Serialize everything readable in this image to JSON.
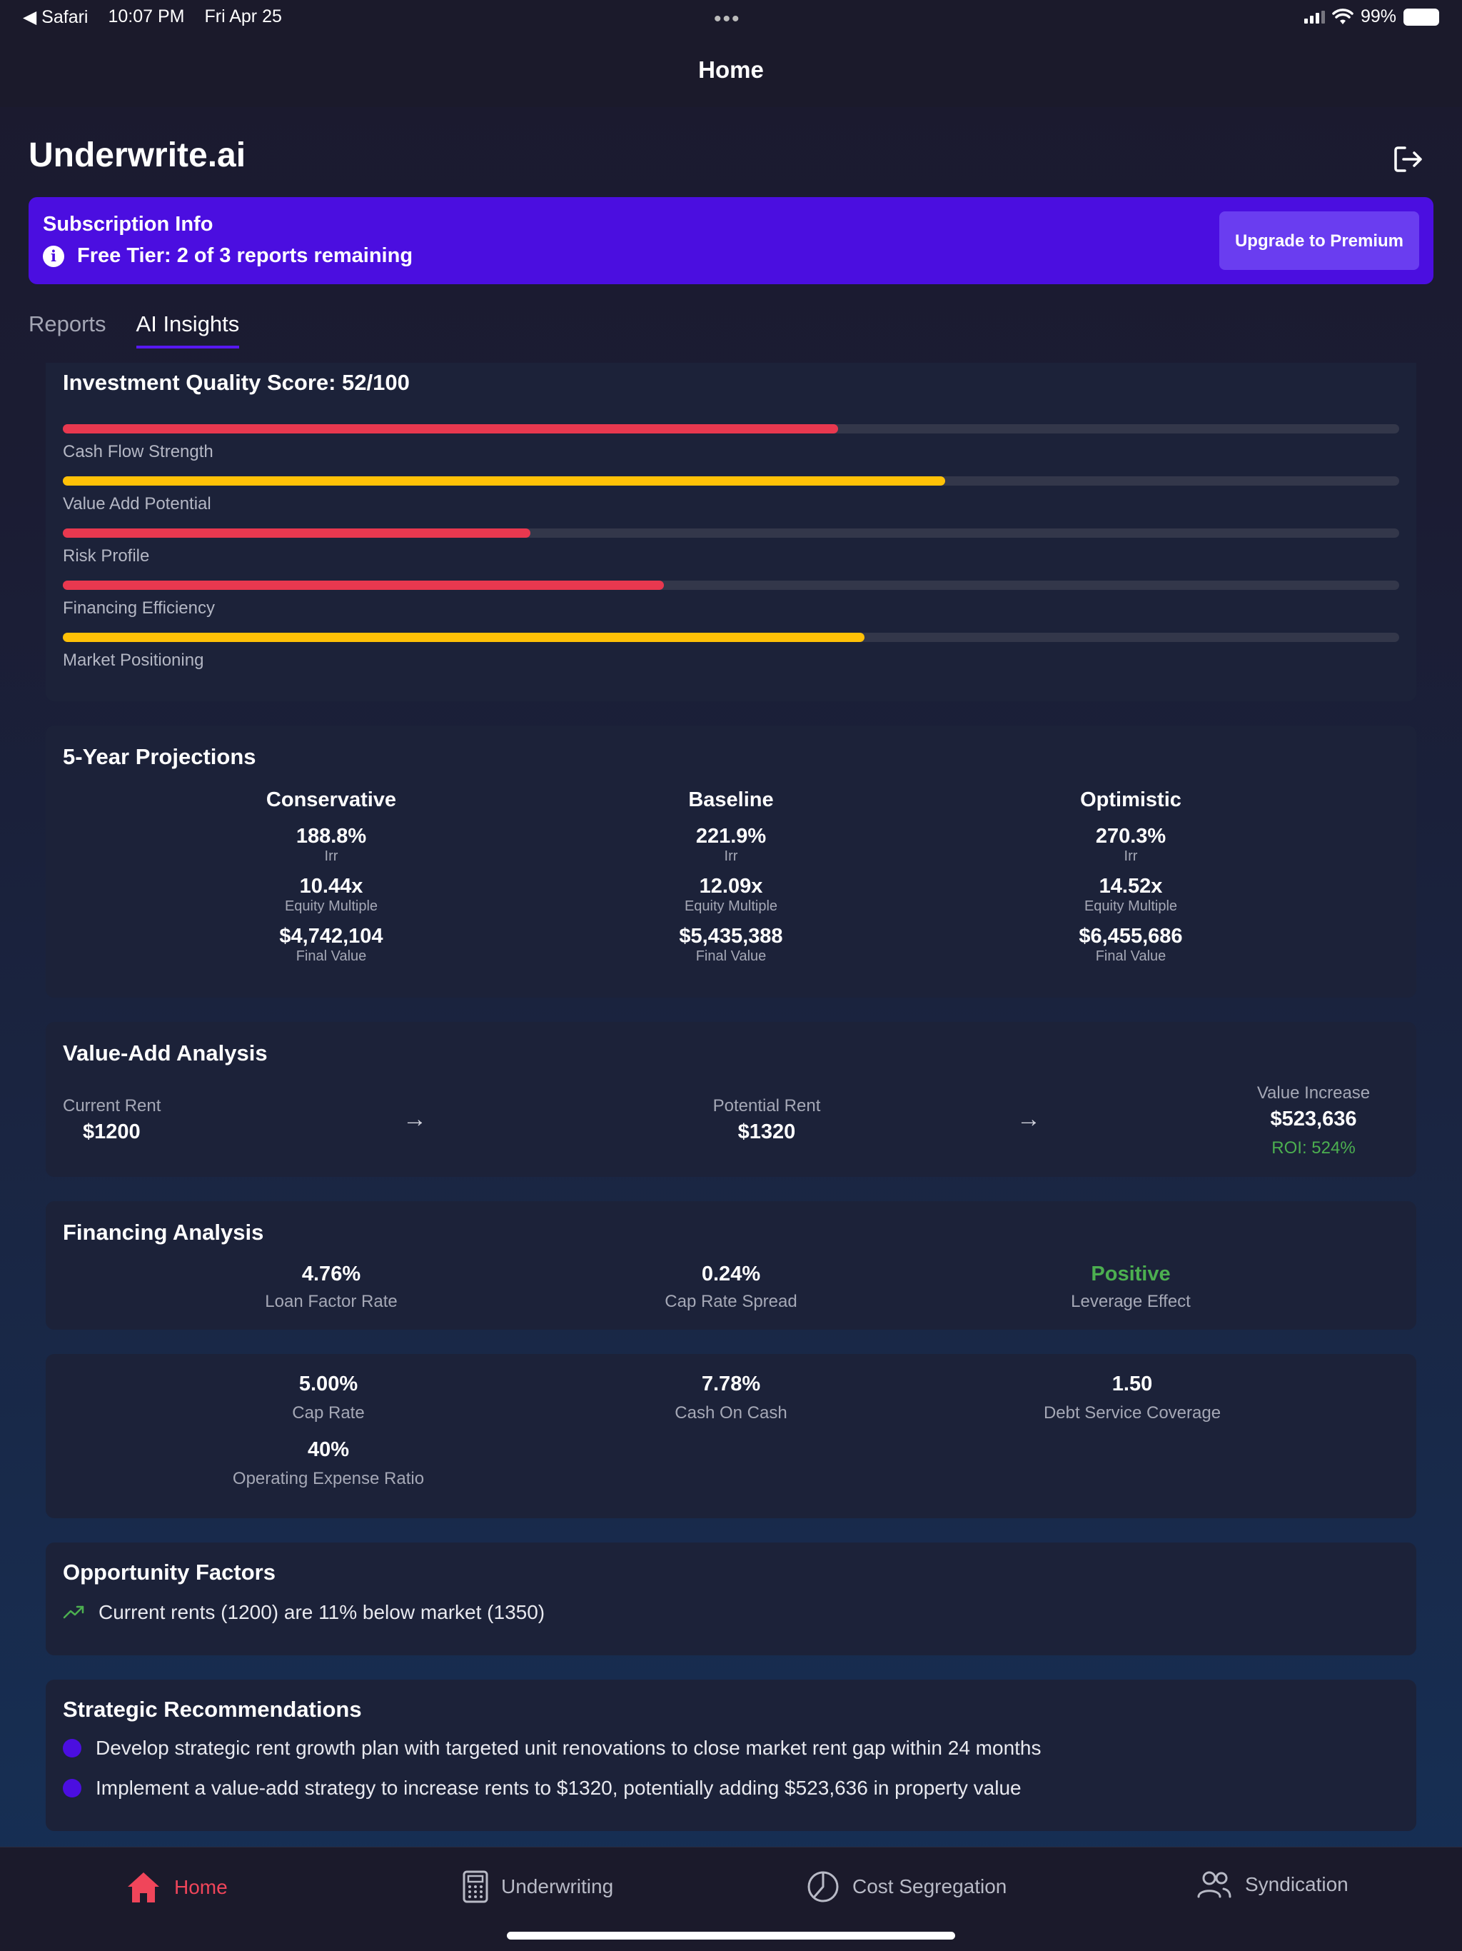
{
  "status_bar": {
    "back_app": "◀ Safari",
    "time": "10:07 PM",
    "date": "Fri Apr 25",
    "battery": "99%"
  },
  "nav": {
    "title": "Home"
  },
  "app": {
    "title": "Underwrite.ai"
  },
  "subscription": {
    "title": "Subscription Info",
    "info": "Free Tier: 2 of 3 reports remaining",
    "upgrade_label": "Upgrade to Premium"
  },
  "tabs": [
    {
      "label": "Reports"
    },
    {
      "label": "AI Insights"
    }
  ],
  "quality": {
    "title": "Investment Quality Score: 52/100",
    "bars": [
      {
        "label": "Cash Flow Strength",
        "value": 0.58,
        "color": "#e8384f"
      },
      {
        "label": "Value Add Potential",
        "value": 0.66,
        "color": "#ffc107"
      },
      {
        "label": "Risk Profile",
        "value": 0.35,
        "color": "#e8384f"
      },
      {
        "label": "Financing Efficiency",
        "value": 0.45,
        "color": "#e8384f"
      },
      {
        "label": "Market Positioning",
        "value": 0.6,
        "color": "#ffc107"
      }
    ]
  },
  "projections": {
    "title": "5-Year Projections",
    "scenarios": [
      {
        "name": "Conservative",
        "irr": "188.8%",
        "irr_label": "Irr",
        "equity_multiple": "10.44x",
        "em_label": "Equity Multiple",
        "final_value": "$4,742,104",
        "fv_label": "Final Value"
      },
      {
        "name": "Baseline",
        "irr": "221.9%",
        "irr_label": "Irr",
        "equity_multiple": "12.09x",
        "em_label": "Equity Multiple",
        "final_value": "$5,435,388",
        "fv_label": "Final Value"
      },
      {
        "name": "Optimistic",
        "irr": "270.3%",
        "irr_label": "Irr",
        "equity_multiple": "14.52x",
        "em_label": "Equity Multiple",
        "final_value": "$6,455,686",
        "fv_label": "Final Value"
      }
    ]
  },
  "value_add": {
    "title": "Value-Add Analysis",
    "current_rent_label": "Current Rent",
    "current_rent": "$1200",
    "potential_rent_label": "Potential Rent",
    "potential_rent": "$1320",
    "value_increase_label": "Value Increase",
    "value_increase": "$523,636",
    "roi": "ROI: 524%"
  },
  "financing": {
    "title": "Financing Analysis",
    "metrics": [
      {
        "value": "4.76%",
        "label": "Loan Factor Rate"
      },
      {
        "value": "0.24%",
        "label": "Cap Rate Spread"
      },
      {
        "value": "Positive",
        "label": "Leverage Effect"
      }
    ]
  },
  "metrics": [
    {
      "value": "5.00%",
      "label": "Cap Rate"
    },
    {
      "value": "7.78%",
      "label": "Cash On Cash"
    },
    {
      "value": "1.50",
      "label": "Debt Service Coverage"
    },
    {
      "value": "40%",
      "label": "Operating Expense Ratio"
    }
  ],
  "opportunity": {
    "title": "Opportunity Factors",
    "items": [
      "Current rents (1200) are 11% below market (1350)"
    ]
  },
  "recommendations": {
    "title": "Strategic Recommendations",
    "items": [
      "Develop strategic rent growth plan with targeted unit renovations to close market rent gap within 24 months",
      "Implement a value-add strategy to increase rents to $1320, potentially adding $523,636 in property value"
    ]
  },
  "tabbar": [
    {
      "label": "Home",
      "icon": "home-icon",
      "active": true
    },
    {
      "label": "Underwriting",
      "icon": "calculator-icon"
    },
    {
      "label": "Cost Segregation",
      "icon": "pie-chart-icon"
    },
    {
      "label": "Syndication",
      "icon": "users-icon"
    }
  ],
  "colors": {
    "accent": "#4b0ee0",
    "danger": "#e8384f",
    "warning": "#ffc107",
    "success": "#4caf50"
  }
}
